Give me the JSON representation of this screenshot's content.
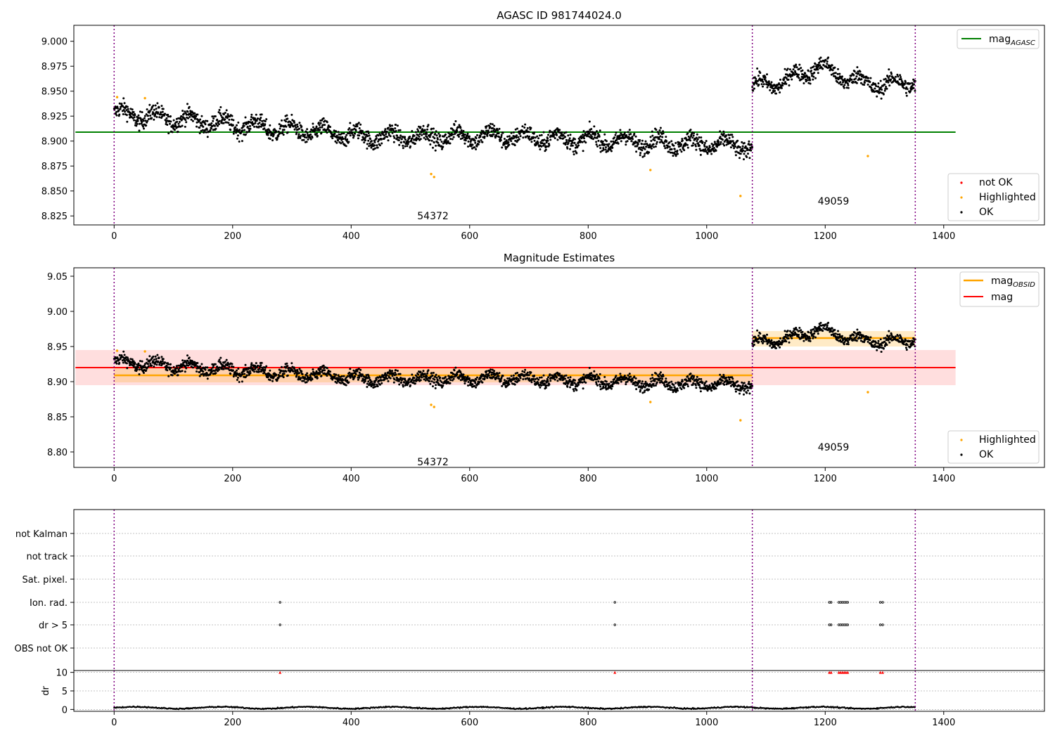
{
  "chart_data": [
    {
      "type": "scatter",
      "title": "AGASC ID 981744024.0",
      "xlim": [
        -68,
        1570
      ],
      "ylim": [
        8.816,
        9.016
      ],
      "x_ticks": [
        0,
        200,
        400,
        600,
        800,
        1000,
        1200,
        1400
      ],
      "y_ticks": [
        8.825,
        8.85,
        8.875,
        8.9,
        8.925,
        8.95,
        8.975,
        9.0
      ],
      "y_tick_labels": [
        "8.825",
        "8.850",
        "8.875",
        "8.900",
        "8.925",
        "8.950",
        "8.975",
        "9.000"
      ],
      "obsid_boundaries": [
        0,
        1077,
        1352
      ],
      "obsid_labels": [
        {
          "text": "54372",
          "x": 538,
          "y": 8.825
        },
        {
          "text": "49059",
          "x": 1214,
          "y": 8.84
        }
      ],
      "reference_line": {
        "name": "mag_AGASC",
        "value": 8.909,
        "x": [
          0,
          1420
        ],
        "color": "#008000"
      },
      "segments": [
        {
          "x": [
            0,
            1077
          ],
          "mean": 8.909,
          "trend": [
            8.928,
            8.916,
            8.904,
            8.905,
            8.9,
            8.895
          ],
          "noise": 0.0085
        },
        {
          "x": [
            1077,
            1352
          ],
          "mean": 8.962,
          "trend": [
            8.955,
            8.96,
            8.975,
            8.962,
            8.956,
            8.96
          ],
          "noise": 0.008
        }
      ],
      "highlighted_points": {
        "x": [
          5,
          52,
          535,
          540,
          905,
          1057,
          1272
        ],
        "y": [
          8.944,
          8.943,
          8.867,
          8.864,
          8.871,
          8.845,
          8.885
        ]
      },
      "legend_lines": [
        {
          "label": "mag",
          "sub": "AGASC",
          "color": "#008000"
        }
      ],
      "legend_points": [
        {
          "label": "not OK",
          "color": "#ff0000"
        },
        {
          "label": "Highlighted",
          "color": "#ffa500"
        },
        {
          "label": "OK",
          "color": "#000000"
        }
      ],
      "grid": false
    },
    {
      "type": "scatter",
      "title": "Magnitude Estimates",
      "xlim": [
        -68,
        1570
      ],
      "ylim": [
        8.778,
        9.062
      ],
      "x_ticks": [
        0,
        200,
        400,
        600,
        800,
        1000,
        1200,
        1400
      ],
      "y_ticks": [
        8.8,
        8.85,
        8.9,
        8.95,
        9.0,
        9.05
      ],
      "y_tick_labels": [
        "8.80",
        "8.85",
        "8.90",
        "8.95",
        "9.00",
        "9.05"
      ],
      "obsid_boundaries": [
        0,
        1077,
        1352
      ],
      "obsid_labels": [
        {
          "text": "54372",
          "x": 538,
          "y": 8.786
        },
        {
          "text": "49059",
          "x": 1214,
          "y": 8.807
        }
      ],
      "mag_band": {
        "value": 8.92,
        "low": 8.895,
        "high": 8.945,
        "x": [
          0,
          1420
        ],
        "color": "#ff0000"
      },
      "obsid_mags": [
        {
          "x": [
            0,
            1077
          ],
          "value": 8.909,
          "low": 8.899,
          "high": 8.919,
          "color": "#ffa500"
        },
        {
          "x": [
            1077,
            1352
          ],
          "value": 8.962,
          "low": 8.95,
          "high": 8.972,
          "color": "#ffa500"
        }
      ],
      "legend_lines": [
        {
          "label": "mag",
          "sub": "OBSID",
          "color": "#ffa500"
        },
        {
          "label": "mag",
          "sub": "",
          "color": "#ff0000"
        }
      ],
      "legend_points": [
        {
          "label": "Highlighted",
          "color": "#ffa500"
        },
        {
          "label": "OK",
          "color": "#000000"
        }
      ],
      "grid": false
    },
    {
      "type": "scatter",
      "xlim": [
        -68,
        1570
      ],
      "flag_rows": [
        "not Kalman",
        "not track",
        "Sat. pixel.",
        "Ion. rad.",
        "dr > 5",
        "OBS not OK"
      ],
      "flag_points": {
        "Ion. rad.": [
          280,
          845,
          1207,
          1210,
          1223,
          1226,
          1229,
          1232,
          1235,
          1238,
          1293,
          1297
        ],
        "dr > 5": [
          280,
          845,
          1207,
          1210,
          1223,
          1226,
          1229,
          1232,
          1235,
          1238,
          1293,
          1297
        ]
      },
      "obsid_boundaries": [
        0,
        1077,
        1352
      ],
      "grid": true
    },
    {
      "type": "scatter",
      "ylabel": "dr",
      "xlim": [
        -68,
        1570
      ],
      "ylim": [
        -0.5,
        10.5
      ],
      "x_ticks": [
        0,
        200,
        400,
        600,
        800,
        1000,
        1200,
        1400
      ],
      "y_ticks": [
        0,
        5,
        10
      ],
      "dr_high_x": [
        280,
        845,
        1207,
        1210,
        1223,
        1226,
        1229,
        1232,
        1235,
        1238,
        1293,
        1297
      ],
      "dr_high_value": 10,
      "dr_baseline": {
        "mean": 0.45,
        "noise": 0.25
      },
      "obsid_boundaries": [
        0,
        1077,
        1352
      ],
      "grid": true
    }
  ]
}
